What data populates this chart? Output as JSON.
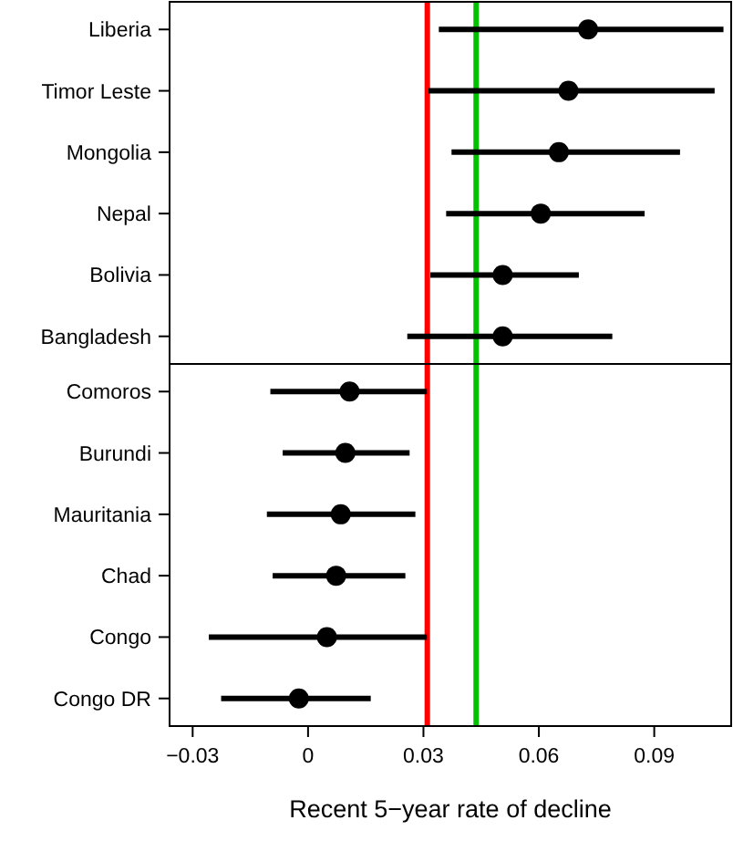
{
  "chart_data": [
    {
      "type": "scatter",
      "orientation": "horizontal",
      "categories": [
        "Liberia",
        "Timor Leste",
        "Mongolia",
        "Nepal",
        "Bolivia",
        "Bangladesh"
      ],
      "color": "#000000",
      "values": [
        0.0728,
        0.0677,
        0.0652,
        0.0605,
        0.0506,
        0.0506
      ],
      "errors": [
        [
          0.034,
          0.108
        ],
        [
          0.0313,
          0.1057
        ],
        [
          0.0373,
          0.0967
        ],
        [
          0.0359,
          0.0875
        ],
        [
          0.0318,
          0.0704
        ],
        [
          0.0258,
          0.0791
        ]
      ],
      "xlim": [
        -0.036,
        0.11
      ],
      "tick_labels": "y",
      "marker": "circle",
      "grid": false,
      "ref_lines": [
        {
          "axis": "x",
          "value": 0.031,
          "color": "#ff0000"
        },
        {
          "axis": "x",
          "value": 0.0437,
          "color": "#00c000"
        }
      ]
    },
    {
      "type": "scatter",
      "orientation": "horizontal",
      "categories": [
        "Comoros",
        "Burundi",
        "Mauritania",
        "Chad",
        "Congo",
        "Congo DR"
      ],
      "color": "#000000",
      "values": [
        0.0108,
        0.0097,
        0.0085,
        0.0073,
        0.0049,
        -0.0024
      ],
      "errors": [
        [
          -0.0098,
          0.0309
        ],
        [
          -0.0066,
          0.0264
        ],
        [
          -0.0107,
          0.0279
        ],
        [
          -0.0092,
          0.0253
        ],
        [
          -0.0258,
          0.0309
        ],
        [
          -0.0226,
          0.0163
        ]
      ],
      "xlim": [
        -0.036,
        0.11
      ],
      "xticks": [
        {
          "value": -0.03,
          "label": "−0.03"
        },
        0,
        0.03,
        0.06,
        0.09
      ],
      "xlabel": "Recent 5−year rate of decline",
      "marker": "circle",
      "grid": false,
      "ref_lines": [
        {
          "axis": "x",
          "value": 0.031,
          "color": "#ff0000"
        },
        {
          "axis": "x",
          "value": 0.0437,
          "color": "#00c000"
        }
      ]
    }
  ]
}
